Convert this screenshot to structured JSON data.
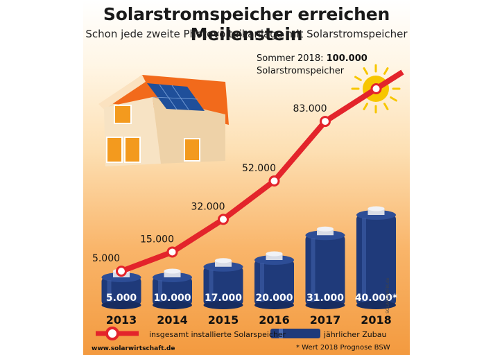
{
  "header": {
    "title": "Solarstromspeicher erreichen Meilenstein",
    "subtitle": "Schon jede zweite Photovoltaikanlage mit Solarstromspeicher"
  },
  "annotation": {
    "prefix": "Sommer 2018: ",
    "value": "100.000",
    "line2": "Solarstromspeicher"
  },
  "legend": {
    "line_label": "insgesamt installierte Solarspeicher",
    "bar_label": "jährlicher Zubau"
  },
  "footer": {
    "url": "www.solarwirtschaft.de",
    "note": "* Wert 2018 Prognose BSW",
    "credit": "SOLARGRAFIK.de"
  },
  "colors": {
    "line": "#e3242b",
    "battery": "#1f3a7a",
    "sun": "#f7c600",
    "roof": "#f26a1b"
  },
  "chart_data": {
    "type": "bar",
    "categories": [
      "2013",
      "2014",
      "2015",
      "2016",
      "2017",
      "2018"
    ],
    "series": [
      {
        "name": "jährlicher Zubau",
        "type": "bar",
        "values": [
          5000,
          10000,
          17000,
          20000,
          31000,
          40000
        ],
        "labels": [
          "5.000",
          "10.000",
          "17.000",
          "20.000",
          "31.000",
          "40.000*"
        ]
      },
      {
        "name": "insgesamt installierte Solarspeicher",
        "type": "line",
        "values": [
          5000,
          15000,
          32000,
          52000,
          83000,
          100000
        ],
        "labels": [
          "5.000",
          "15.000",
          "32.000",
          "52.000",
          "83.000",
          ""
        ]
      }
    ]
  }
}
